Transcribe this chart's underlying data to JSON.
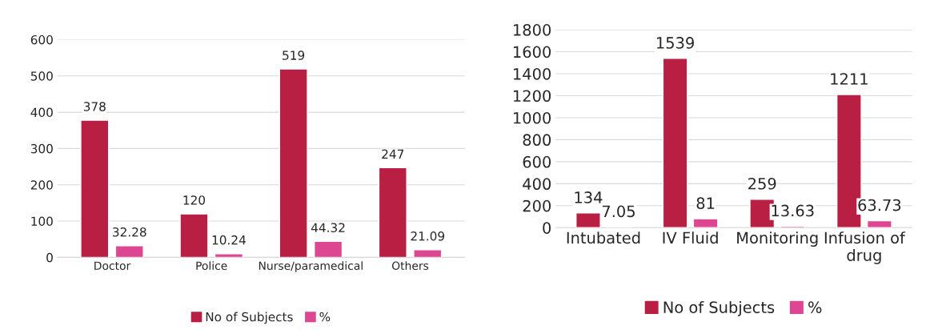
{
  "chart_data": [
    {
      "type": "bar",
      "categories": [
        "Doctor",
        "Police",
        "Nurse/paramedical",
        "Others"
      ],
      "series": [
        {
          "name": "No of Subjects",
          "color": "#b81f42",
          "values": [
            378,
            120,
            519,
            247
          ]
        },
        {
          "name": "%",
          "color": "#dd4690",
          "values": [
            32.28,
            10.24,
            44.32,
            21.09
          ]
        }
      ],
      "ylim": [
        0,
        600
      ],
      "yticks": [
        0,
        100,
        200,
        300,
        400,
        500,
        600
      ],
      "grid": "y",
      "legend": "bottom",
      "data_labels": true
    },
    {
      "type": "bar",
      "categories": [
        "Intubated",
        "IV Fluid",
        "Monitoring",
        "Infusion of\ndrug"
      ],
      "series": [
        {
          "name": "No of Subjects",
          "color": "#b81f42",
          "values": [
            134,
            1539,
            259,
            1211
          ]
        },
        {
          "name": "%",
          "color": "#dd4690",
          "values": [
            7.05,
            81,
            13.63,
            63.73
          ]
        }
      ],
      "ylim": [
        0,
        1800
      ],
      "yticks": [
        0,
        200,
        400,
        600,
        800,
        1000,
        1200,
        1400,
        1600,
        1800
      ],
      "grid": "y",
      "legend": "bottom",
      "data_labels": true
    }
  ]
}
